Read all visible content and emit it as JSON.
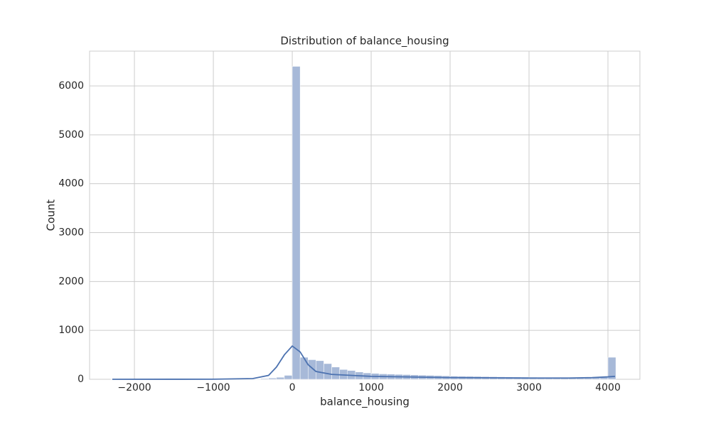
{
  "chart_data": {
    "type": "histogram",
    "title": "Distribution of balance_housing",
    "xlabel": "balance_housing",
    "ylabel": "Count",
    "bins": [
      -2300,
      -2200,
      -2100,
      -2000,
      -1900,
      -1800,
      -1700,
      -1600,
      -1500,
      -1400,
      -1300,
      -1200,
      -1100,
      -1000,
      -900,
      -800,
      -700,
      -600,
      -500,
      -400,
      -300,
      -200,
      -100,
      0,
      100,
      200,
      300,
      400,
      500,
      600,
      700,
      800,
      900,
      1000,
      1100,
      1200,
      1300,
      1400,
      1500,
      1600,
      1700,
      1800,
      1900,
      2000,
      2100,
      2200,
      2300,
      2400,
      2500,
      2600,
      2700,
      2800,
      2900,
      3000,
      3100,
      3200,
      3300,
      3400,
      3500,
      3600,
      3700,
      3800,
      3900,
      4000,
      4100
    ],
    "counts": [
      1,
      0,
      0,
      0,
      0,
      1,
      0,
      0,
      0,
      1,
      0,
      1,
      0,
      1,
      1,
      2,
      2,
      3,
      5,
      15,
      25,
      40,
      80,
      6400,
      450,
      400,
      380,
      320,
      250,
      200,
      180,
      150,
      130,
      120,
      110,
      105,
      100,
      95,
      90,
      85,
      80,
      75,
      70,
      65,
      62,
      60,
      58,
      55,
      52,
      50,
      48,
      46,
      44,
      42,
      40,
      40,
      38,
      38,
      36,
      36,
      38,
      40,
      42,
      450
    ],
    "color": "#a7b9d8",
    "kde": {
      "color": "#4c72b0",
      "x": [
        -2280,
        -1500,
        -1000,
        -500,
        -300,
        -200,
        -100,
        0,
        100,
        200,
        300,
        500,
        1000,
        2000,
        3000,
        3500,
        3800,
        4000,
        4090
      ],
      "values": [
        0,
        1,
        2,
        15,
        80,
        250,
        500,
        680,
        560,
        300,
        160,
        100,
        60,
        35,
        25,
        25,
        35,
        50,
        60
      ]
    },
    "xlim": [
      -2568,
      4405
    ],
    "ylim": [
      0,
      6712
    ],
    "xticks": [
      {
        "value": -2000,
        "label": "−2000"
      },
      {
        "value": -1000,
        "label": "−1000"
      },
      0,
      1000,
      2000,
      3000,
      4000
    ],
    "yticks": [
      0,
      1000,
      2000,
      3000,
      4000,
      5000,
      6000
    ],
    "grid": true
  }
}
